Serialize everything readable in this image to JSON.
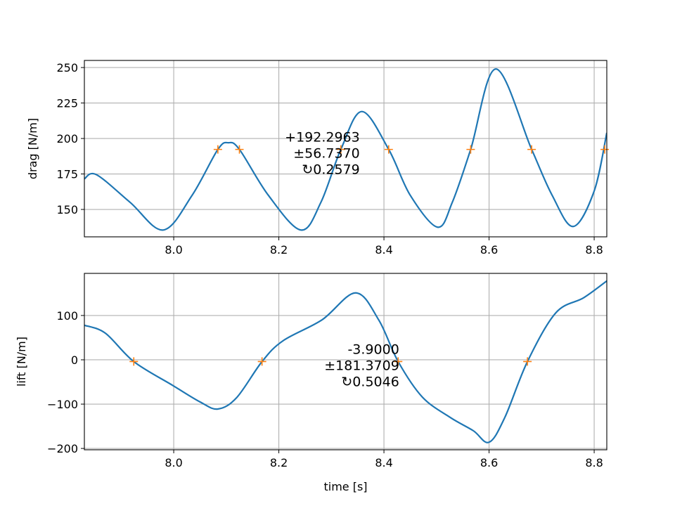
{
  "chart_data": [
    {
      "type": "line",
      "ylabel": "drag [N/m]",
      "xlabel": "",
      "xlim": [
        7.83,
        8.824
      ],
      "ylim": [
        130.7,
        255
      ],
      "grid": true,
      "xticks": [
        "8.0",
        "8.2",
        "8.4",
        "8.6",
        "8.8"
      ],
      "xtick_values": [
        8.0,
        8.2,
        8.4,
        8.6,
        8.8
      ],
      "yticks": [
        "150",
        "175",
        "200",
        "225",
        "250"
      ],
      "ytick_values": [
        150,
        175,
        200,
        225,
        250
      ],
      "series": [
        {
          "name": "drag",
          "color": "#1f77b4",
          "points": [
            [
              7.83,
              171.6
            ],
            [
              7.853,
              174.5
            ],
            [
              7.917,
              155
            ],
            [
              7.98,
              135.5
            ],
            [
              8.035,
              160
            ],
            [
              8.084,
              192.3
            ],
            [
              8.104,
              197
            ],
            [
              8.125,
              192.3
            ],
            [
              8.18,
              160
            ],
            [
              8.242,
              135.5
            ],
            [
              8.28,
              155
            ],
            [
              8.318,
              192.3
            ],
            [
              8.358,
              219
            ],
            [
              8.409,
              192.3
            ],
            [
              8.45,
              160
            ],
            [
              8.502,
              137.5
            ],
            [
              8.53,
              155
            ],
            [
              8.565,
              192.3
            ],
            [
              8.613,
              249
            ],
            [
              8.681,
              192.3
            ],
            [
              8.72,
              160
            ],
            [
              8.76,
              138
            ],
            [
              8.8,
              163
            ],
            [
              8.824,
              204
            ]
          ]
        }
      ],
      "markers": {
        "color": "#ff7f0e",
        "y": 192.2963,
        "x": [
          8.084,
          8.125,
          8.318,
          8.409,
          8.565,
          8.681,
          8.82
        ]
      },
      "annotation": {
        "x": 8.33,
        "lines": [
          "+192.2963",
          "±56.7370",
          "↻0.2579"
        ]
      }
    },
    {
      "type": "line",
      "ylabel": "lift [N/m]",
      "xlabel": "time [s]",
      "xlim": [
        7.83,
        8.824
      ],
      "ylim": [
        -203,
        195
      ],
      "grid": true,
      "xticks": [
        "8.0",
        "8.2",
        "8.4",
        "8.6",
        "8.8"
      ],
      "xtick_values": [
        8.0,
        8.2,
        8.4,
        8.6,
        8.8
      ],
      "yticks": [
        "−200",
        "−100",
        "0",
        "100"
      ],
      "ytick_values": [
        -200,
        -100,
        0,
        100
      ],
      "series": [
        {
          "name": "lift",
          "color": "#1f77b4",
          "points": [
            [
              7.83,
              78
            ],
            [
              7.87,
              60
            ],
            [
              7.924,
              -4
            ],
            [
              7.997,
              -57
            ],
            [
              8.05,
              -95
            ],
            [
              8.084,
              -111
            ],
            [
              8.12,
              -85
            ],
            [
              8.168,
              -4
            ],
            [
              8.208,
              43
            ],
            [
              8.282,
              90
            ],
            [
              8.346,
              151
            ],
            [
              8.39,
              90
            ],
            [
              8.427,
              -4
            ],
            [
              8.473,
              -84
            ],
            [
              8.526,
              -130
            ],
            [
              8.57,
              -160
            ],
            [
              8.6,
              -186
            ],
            [
              8.63,
              -130
            ],
            [
              8.673,
              -4
            ],
            [
              8.727,
              106
            ],
            [
              8.78,
              140
            ],
            [
              8.824,
              178
            ]
          ]
        }
      ],
      "markers": {
        "color": "#ff7f0e",
        "y": -3.9,
        "x": [
          7.924,
          8.168,
          8.427,
          8.673
        ]
      },
      "annotation": {
        "x": 8.405,
        "lines": [
          "-3.9000",
          "±181.3709",
          "↻0.5046"
        ]
      }
    }
  ]
}
